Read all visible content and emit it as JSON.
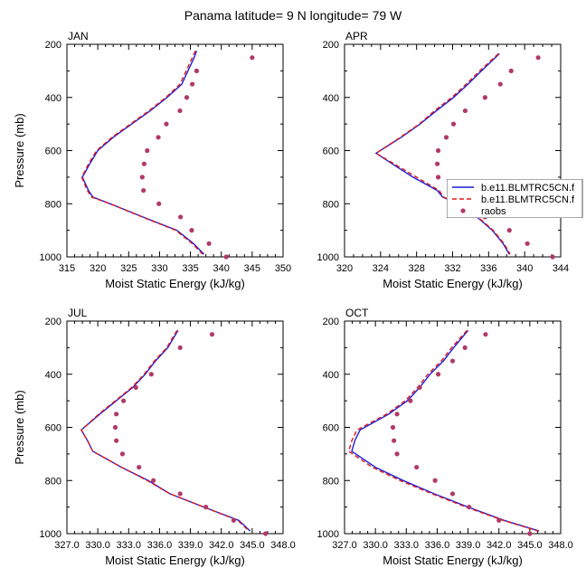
{
  "figure": {
    "title": "Panama  latitude= 9 N longitude= 79 W"
  },
  "colors": {
    "model1": "#1f1fd6",
    "model2": "#e01818",
    "obs": "#b03a68",
    "axis": "#000000",
    "legend_border": "#555555"
  },
  "legend": {
    "entries": [
      "b.e11.BLMTRC5CN.f",
      "b.e11.BLMTRC5CN.f",
      "raobs"
    ]
  },
  "chart_data": [
    {
      "type": "line",
      "panel": "JAN",
      "xlabel": "Moist Static Energy (kJ/kg)",
      "ylabel": "Pressure (mb)",
      "xlim": [
        315,
        350
      ],
      "ylim": [
        1000,
        200
      ],
      "y_reversed": true,
      "xticks": [
        "315",
        "320",
        "325",
        "330",
        "335",
        "340",
        "345",
        "350"
      ],
      "yticks": [
        "200",
        "400",
        "600",
        "800",
        "1000"
      ],
      "series": [
        {
          "name": "b.e11.BLMTRC5CN.f",
          "style": "solid",
          "pressure": [
            225,
            250,
            300,
            350,
            400,
            450,
            500,
            550,
            600,
            650,
            700,
            750,
            775,
            800,
            850,
            900,
            950,
            990
          ],
          "values": [
            336.0,
            335.6,
            334.6,
            333.6,
            331.2,
            328.5,
            325.5,
            322.5,
            320.0,
            318.7,
            317.5,
            318.5,
            319.2,
            322.0,
            327.3,
            332.8,
            335.5,
            337.2
          ]
        },
        {
          "name": "b.e11.BLMTRC5CN.f",
          "style": "dashed",
          "pressure": [
            225,
            250,
            300,
            350,
            400,
            450,
            500,
            550,
            600,
            650,
            700,
            750,
            775,
            800,
            850,
            900,
            950,
            990
          ],
          "values": [
            335.8,
            335.3,
            334.3,
            333.3,
            331.0,
            328.3,
            325.3,
            322.3,
            319.8,
            318.5,
            317.4,
            318.3,
            319.0,
            322.0,
            327.2,
            332.6,
            335.3,
            337.0
          ]
        },
        {
          "name": "raobs",
          "style": "markers",
          "pressure": [
            250,
            300,
            350,
            400,
            450,
            500,
            550,
            600,
            650,
            700,
            750,
            800,
            850,
            900,
            950,
            1000
          ],
          "values": [
            345.0,
            336.0,
            335.3,
            334.4,
            333.3,
            331.1,
            329.8,
            328.0,
            327.5,
            327.2,
            327.4,
            329.9,
            333.4,
            335.2,
            338.0,
            340.8
          ]
        }
      ]
    },
    {
      "type": "line",
      "panel": "APR",
      "xlabel": "Moist Static Energy (kJ/kg)",
      "ylabel": "",
      "xlim": [
        320,
        344
      ],
      "ylim": [
        1000,
        200
      ],
      "y_reversed": true,
      "xticks": [
        "320",
        "324",
        "328",
        "332",
        "336",
        "340",
        "344"
      ],
      "yticks": [
        "200",
        "400",
        "600",
        "800",
        "1000"
      ],
      "series": [
        {
          "name": "b.e11.BLMTRC5CN.f",
          "style": "solid",
          "pressure": [
            235,
            300,
            350,
            400,
            450,
            500,
            550,
            610,
            650,
            700,
            750,
            775,
            800,
            850,
            900,
            950,
            990
          ],
          "values": [
            337.2,
            335.2,
            333.7,
            332.1,
            330.2,
            328.4,
            326.3,
            323.5,
            325.3,
            327.6,
            330.3,
            330.9,
            332.6,
            334.7,
            336.4,
            337.6,
            338.3
          ]
        },
        {
          "name": "b.e11.BLMTRC5CN.f",
          "style": "dashed",
          "pressure": [
            235,
            300,
            350,
            400,
            450,
            500,
            550,
            610,
            650,
            700,
            750,
            775,
            800,
            850,
            900,
            950,
            990
          ],
          "values": [
            337.1,
            335.0,
            333.5,
            331.9,
            330.0,
            328.3,
            326.2,
            323.5,
            325.5,
            328.0,
            330.5,
            331.0,
            332.7,
            334.8,
            336.5,
            337.7,
            338.4
          ]
        },
        {
          "name": "raobs",
          "style": "markers",
          "pressure": [
            250,
            300,
            350,
            400,
            450,
            500,
            550,
            600,
            650,
            700,
            750,
            800,
            850,
            900,
            950,
            1000
          ],
          "values": [
            341.5,
            338.5,
            337.3,
            335.6,
            333.4,
            332.1,
            331.3,
            330.4,
            330.3,
            330.4,
            331.8,
            333.8,
            335.6,
            338.3,
            340.3,
            343.1
          ]
        }
      ]
    },
    {
      "type": "line",
      "panel": "JUL",
      "xlabel": "Moist Static Energy (kJ/kg)",
      "ylabel": "Pressure (mb)",
      "xlim": [
        327,
        348
      ],
      "ylim": [
        1000,
        200
      ],
      "y_reversed": true,
      "xticks": [
        "327.0",
        "330.0",
        "333.0",
        "336.0",
        "339.0",
        "342.0",
        "345.0",
        "348.0"
      ],
      "yticks": [
        "200",
        "400",
        "600",
        "800",
        "1000"
      ],
      "series": [
        {
          "name": "b.e11.BLMTRC5CN.f",
          "style": "solid",
          "pressure": [
            235,
            300,
            350,
            400,
            450,
            500,
            550,
            610,
            650,
            690,
            750,
            800,
            850,
            900,
            950,
            990
          ],
          "values": [
            337.8,
            336.8,
            335.6,
            334.6,
            333.4,
            331.8,
            330.2,
            328.4,
            329.0,
            329.5,
            332.3,
            334.9,
            337.0,
            340.3,
            343.7,
            344.8
          ]
        },
        {
          "name": "b.e11.BLMTRC5CN.f",
          "style": "dashed",
          "pressure": [
            235,
            300,
            350,
            400,
            450,
            500,
            550,
            610,
            650,
            690,
            750,
            800,
            850,
            900,
            950,
            990
          ],
          "values": [
            337.7,
            336.7,
            335.5,
            334.5,
            333.3,
            331.7,
            330.1,
            328.4,
            329.0,
            329.5,
            332.3,
            334.8,
            337.0,
            340.3,
            343.6,
            344.7
          ]
        },
        {
          "name": "raobs",
          "style": "markers",
          "pressure": [
            250,
            300,
            400,
            450,
            500,
            550,
            600,
            650,
            700,
            750,
            800,
            850,
            900,
            950,
            1000
          ],
          "values": [
            341.1,
            338.0,
            335.2,
            333.7,
            332.5,
            331.8,
            331.7,
            331.8,
            332.4,
            334.0,
            335.4,
            338.0,
            340.5,
            343.2,
            346.3
          ]
        }
      ]
    },
    {
      "type": "line",
      "panel": "OCT",
      "xlabel": "Moist Static Energy (kJ/kg)",
      "ylabel": "",
      "xlim": [
        327,
        348
      ],
      "ylim": [
        1000,
        200
      ],
      "y_reversed": true,
      "xticks": [
        "327.0",
        "330.0",
        "333.0",
        "336.0",
        "339.0",
        "342.0",
        "345.0",
        "348.0"
      ],
      "yticks": [
        "200",
        "400",
        "600",
        "800",
        "1000"
      ],
      "series": [
        {
          "name": "b.e11.BLMTRC5CN.f",
          "style": "solid",
          "pressure": [
            235,
            300,
            350,
            400,
            450,
            500,
            550,
            610,
            650,
            690,
            750,
            800,
            850,
            900,
            950,
            990
          ],
          "values": [
            339.0,
            337.6,
            336.6,
            335.3,
            334.3,
            333.1,
            331.3,
            328.5,
            328.0,
            327.7,
            330.0,
            332.7,
            335.7,
            339.0,
            342.5,
            345.9
          ]
        },
        {
          "name": "b.e11.BLMTRC5CN.f",
          "style": "dashed",
          "pressure": [
            235,
            300,
            350,
            400,
            450,
            500,
            550,
            610,
            650,
            690,
            750,
            800,
            850,
            900,
            950,
            990
          ],
          "values": [
            338.9,
            337.4,
            336.4,
            335.1,
            334.1,
            332.9,
            331.1,
            328.2,
            327.7,
            327.4,
            329.7,
            332.4,
            335.5,
            338.8,
            342.4,
            345.8
          ]
        },
        {
          "name": "raobs",
          "style": "markers",
          "pressure": [
            250,
            300,
            350,
            400,
            450,
            500,
            550,
            600,
            650,
            700,
            750,
            800,
            850,
            900,
            950,
            1000
          ],
          "values": [
            340.7,
            338.7,
            337.5,
            336.1,
            334.3,
            333.4,
            332.1,
            331.7,
            331.8,
            332.1,
            334.0,
            335.8,
            337.5,
            339.1,
            342.0,
            345.0
          ]
        }
      ]
    }
  ]
}
